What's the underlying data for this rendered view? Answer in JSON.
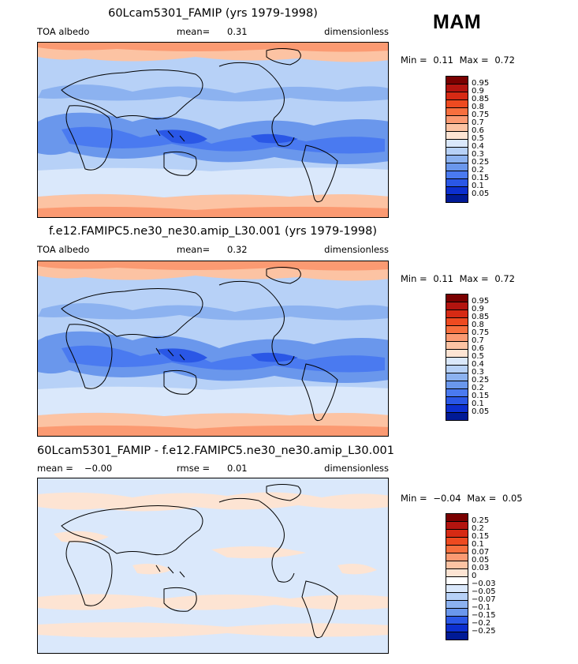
{
  "season": "MAM",
  "panels": [
    {
      "title": "60Lcam5301_FAMIP (yrs 1979-1998)",
      "left_label": "TOA albedo",
      "center_label": "mean=",
      "center_value": "0.31",
      "right_label": "dimensionless",
      "min_label": "Min =",
      "min_value": "0.11",
      "max_label": "Max =",
      "max_value": "0.72",
      "colorbar_labels": [
        "0.95",
        "0.9",
        "0.85",
        "0.8",
        "0.75",
        "0.7",
        "0.6",
        "0.5",
        "0.4",
        "0.3",
        "0.25",
        "0.2",
        "0.15",
        "0.1",
        "0.05"
      ],
      "kind": "abs"
    },
    {
      "title": "f.e12.FAMIPC5.ne30_ne30.amip_L30.001 (yrs 1979-1998)",
      "left_label": "TOA albedo",
      "center_label": "mean=",
      "center_value": "0.32",
      "right_label": "dimensionless",
      "min_label": "Min =",
      "min_value": "0.11",
      "max_label": "Max =",
      "max_value": "0.72",
      "colorbar_labels": [
        "0.95",
        "0.9",
        "0.85",
        "0.8",
        "0.75",
        "0.7",
        "0.6",
        "0.5",
        "0.4",
        "0.3",
        "0.25",
        "0.2",
        "0.15",
        "0.1",
        "0.05"
      ],
      "kind": "abs"
    },
    {
      "title": "60Lcam5301_FAMIP - f.e12.FAMIPC5.ne30_ne30.amip_L30.001",
      "left_label": "mean =",
      "left_value": "−0.00",
      "center_label": "rmse =",
      "center_value": "0.01",
      "right_label": "dimensionless",
      "min_label": "Min =",
      "min_value": "−0.04",
      "max_label": "Max =",
      "max_value": "0.05",
      "colorbar_labels": [
        "0.25",
        "0.2",
        "0.15",
        "0.1",
        "0.07",
        "0.05",
        "0.03",
        "0",
        "−0.03",
        "−0.05",
        "−0.07",
        "−0.1",
        "−0.15",
        "−0.2",
        "−0.25"
      ],
      "kind": "diff"
    }
  ],
  "colors": {
    "abs": [
      "#7a0000",
      "#b3140f",
      "#d62a14",
      "#ee4a20",
      "#f76f3e",
      "#fb9a72",
      "#fcc3a3",
      "#fde4d3",
      "#dae8fb",
      "#b7d1f7",
      "#8cb2f0",
      "#6a97ec",
      "#4a7af0",
      "#2a57e6",
      "#0c2fcf",
      "#001a96"
    ],
    "diff": [
      "#7a0000",
      "#b3140f",
      "#d62a14",
      "#ee4a20",
      "#f76f3e",
      "#fb9a72",
      "#fcc3a3",
      "#fde4d3",
      "#ffffff",
      "#dae8fb",
      "#b7d1f7",
      "#8cb2f0",
      "#6a97ec",
      "#2a57e6",
      "#0c2fcf",
      "#001a96"
    ],
    "coast": "#000000"
  }
}
